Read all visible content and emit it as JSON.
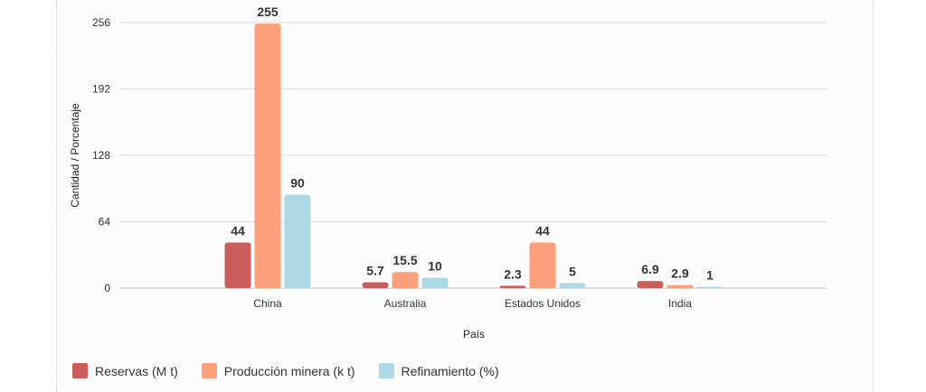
{
  "chart_data": {
    "type": "bar",
    "title": "",
    "xlabel": "País",
    "ylabel": "Cantidad / Porcentaje",
    "categories": [
      "China",
      "Australia",
      "Estados Unidos",
      "India"
    ],
    "series": [
      {
        "name": "Reservas (M t)",
        "color": "#cd5c5c",
        "values": [
          44,
          5.7,
          2.3,
          6.9
        ],
        "labels": [
          "44",
          "5.7",
          "2.3",
          "6.9"
        ]
      },
      {
        "name": "Producción minera (k t)",
        "color": "#ffa07a",
        "values": [
          255,
          15.5,
          44,
          2.9
        ],
        "labels": [
          "255",
          "15.5",
          "44",
          "2.9"
        ]
      },
      {
        "name": "Refinamiento (%)",
        "color": "#add8e6",
        "values": [
          90,
          10,
          5,
          1
        ],
        "labels": [
          "90",
          "10",
          "5",
          "1"
        ]
      }
    ],
    "yticks": [
      0,
      64,
      128,
      192,
      256
    ],
    "ylim": [
      0,
      256
    ],
    "grid": true,
    "legend_position": "bottom-left"
  }
}
